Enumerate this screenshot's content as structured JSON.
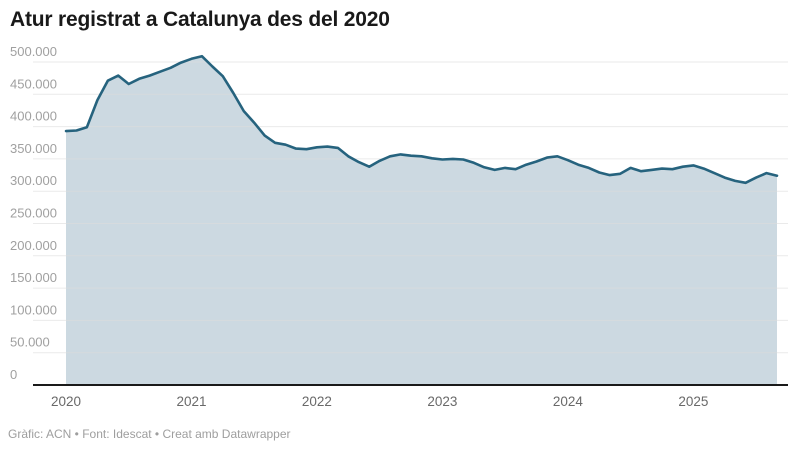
{
  "header": {
    "title": "Atur registrat a Catalunya des del 2020"
  },
  "footer": {
    "credit": "Gràfic: ACN • Font: Idescat • Creat amb Datawrapper"
  },
  "chart_data": {
    "type": "area",
    "title": "Atur registrat a Catalunya des del 2020",
    "x_unit": "month",
    "xlabel": "",
    "ylabel": "",
    "ylim": [
      0,
      500000
    ],
    "grid": "horizontal",
    "legend": "none",
    "months": [
      "2020-01",
      "2020-02",
      "2020-03",
      "2020-04",
      "2020-05",
      "2020-06",
      "2020-07",
      "2020-08",
      "2020-09",
      "2020-10",
      "2020-11",
      "2020-12",
      "2021-01",
      "2021-02",
      "2021-03",
      "2021-04",
      "2021-05",
      "2021-06",
      "2021-07",
      "2021-08",
      "2021-09",
      "2021-10",
      "2021-11",
      "2021-12",
      "2022-01",
      "2022-02",
      "2022-03",
      "2022-04",
      "2022-05",
      "2022-06",
      "2022-07",
      "2022-08",
      "2022-09",
      "2022-10",
      "2022-11",
      "2022-12",
      "2023-01",
      "2023-02",
      "2023-03",
      "2023-04",
      "2023-05",
      "2023-06",
      "2023-07",
      "2023-08",
      "2023-09",
      "2023-10",
      "2023-11",
      "2023-12",
      "2024-01",
      "2024-02",
      "2024-03",
      "2024-04",
      "2024-05",
      "2024-06",
      "2024-07",
      "2024-08",
      "2024-09",
      "2024-10",
      "2024-11",
      "2024-12",
      "2025-01",
      "2025-02",
      "2025-03",
      "2025-04",
      "2025-05",
      "2025-06",
      "2025-07",
      "2025-08",
      "2025-09"
    ],
    "series": [
      {
        "name": "Atur registrat",
        "values": [
          393000,
          394000,
          399000,
          441000,
          471000,
          479000,
          466000,
          474000,
          479000,
          485000,
          491000,
          499000,
          505000,
          509000,
          493000,
          478000,
          452000,
          424000,
          406000,
          386000,
          375000,
          372000,
          366000,
          365000,
          368000,
          369000,
          367000,
          354000,
          345000,
          338000,
          347000,
          354000,
          357000,
          355000,
          354000,
          351000,
          349000,
          350000,
          349000,
          344000,
          337000,
          333000,
          336000,
          334000,
          341000,
          346000,
          352000,
          354000,
          348000,
          341000,
          336000,
          329000,
          325000,
          327000,
          336000,
          331000,
          333000,
          335000,
          334000,
          338000,
          340000,
          335000,
          328000,
          321000,
          316000,
          313000,
          321000,
          328000,
          324000
        ]
      }
    ],
    "x_tick_labels": [
      "2020",
      "2021",
      "2022",
      "2023",
      "2024",
      "2025"
    ],
    "x_tick_month_index": [
      0,
      12,
      24,
      36,
      48,
      60
    ],
    "y_ticks": [
      0,
      50000,
      100000,
      150000,
      200000,
      250000,
      300000,
      350000,
      400000,
      450000,
      500000
    ],
    "y_tick_labels": [
      "0",
      "50.000",
      "100.000",
      "150.000",
      "200.000",
      "250.000",
      "300.000",
      "350.000",
      "400.000",
      "450.000",
      "500.000"
    ],
    "colors": {
      "line": "#26637e",
      "fill": "#c8d6de",
      "grid": "#dcdcdc",
      "baseline": "#1a1a1a",
      "y_label_color": "#a0a0a0",
      "x_label_color": "#696969"
    }
  }
}
